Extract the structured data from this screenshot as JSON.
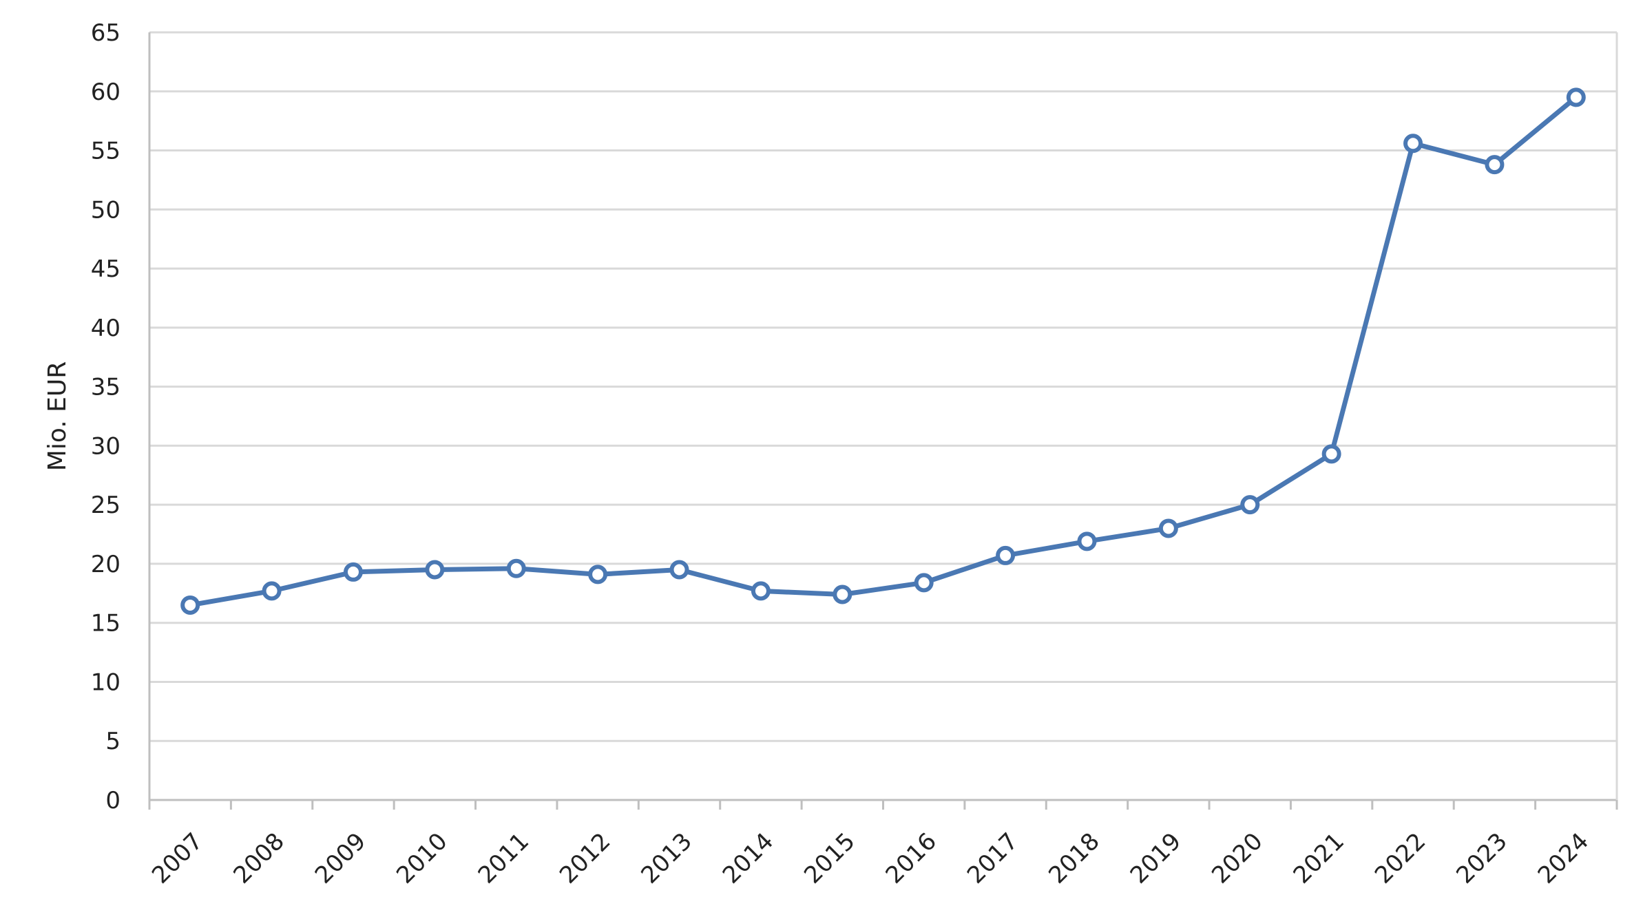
{
  "chart_data": {
    "type": "line",
    "title": "",
    "xlabel": "",
    "ylabel": "Mio. EUR",
    "ylim": [
      0,
      65
    ],
    "yticks": [
      0,
      5,
      10,
      15,
      20,
      25,
      30,
      35,
      40,
      45,
      50,
      55,
      60,
      65
    ],
    "grid": true,
    "legend": "none",
    "categories": [
      "2007",
      "2008",
      "2009",
      "2010",
      "2011",
      "2012",
      "2013",
      "2014",
      "2015",
      "2016",
      "2017",
      "2018",
      "2019",
      "2020",
      "2021",
      "2022",
      "2023",
      "2024"
    ],
    "series": [
      {
        "color": "#4A78B3",
        "values": [
          16.5,
          17.7,
          19.3,
          19.5,
          19.6,
          19.1,
          19.5,
          17.7,
          17.4,
          18.4,
          20.7,
          21.9,
          23.0,
          25.0,
          29.3,
          55.6,
          53.8,
          59.5
        ]
      }
    ]
  },
  "colors": {
    "grid": "#D9D9D9",
    "axis": "#BFBFBF",
    "line": "#4A78B3",
    "marker_fill": "#FFFFFF"
  }
}
